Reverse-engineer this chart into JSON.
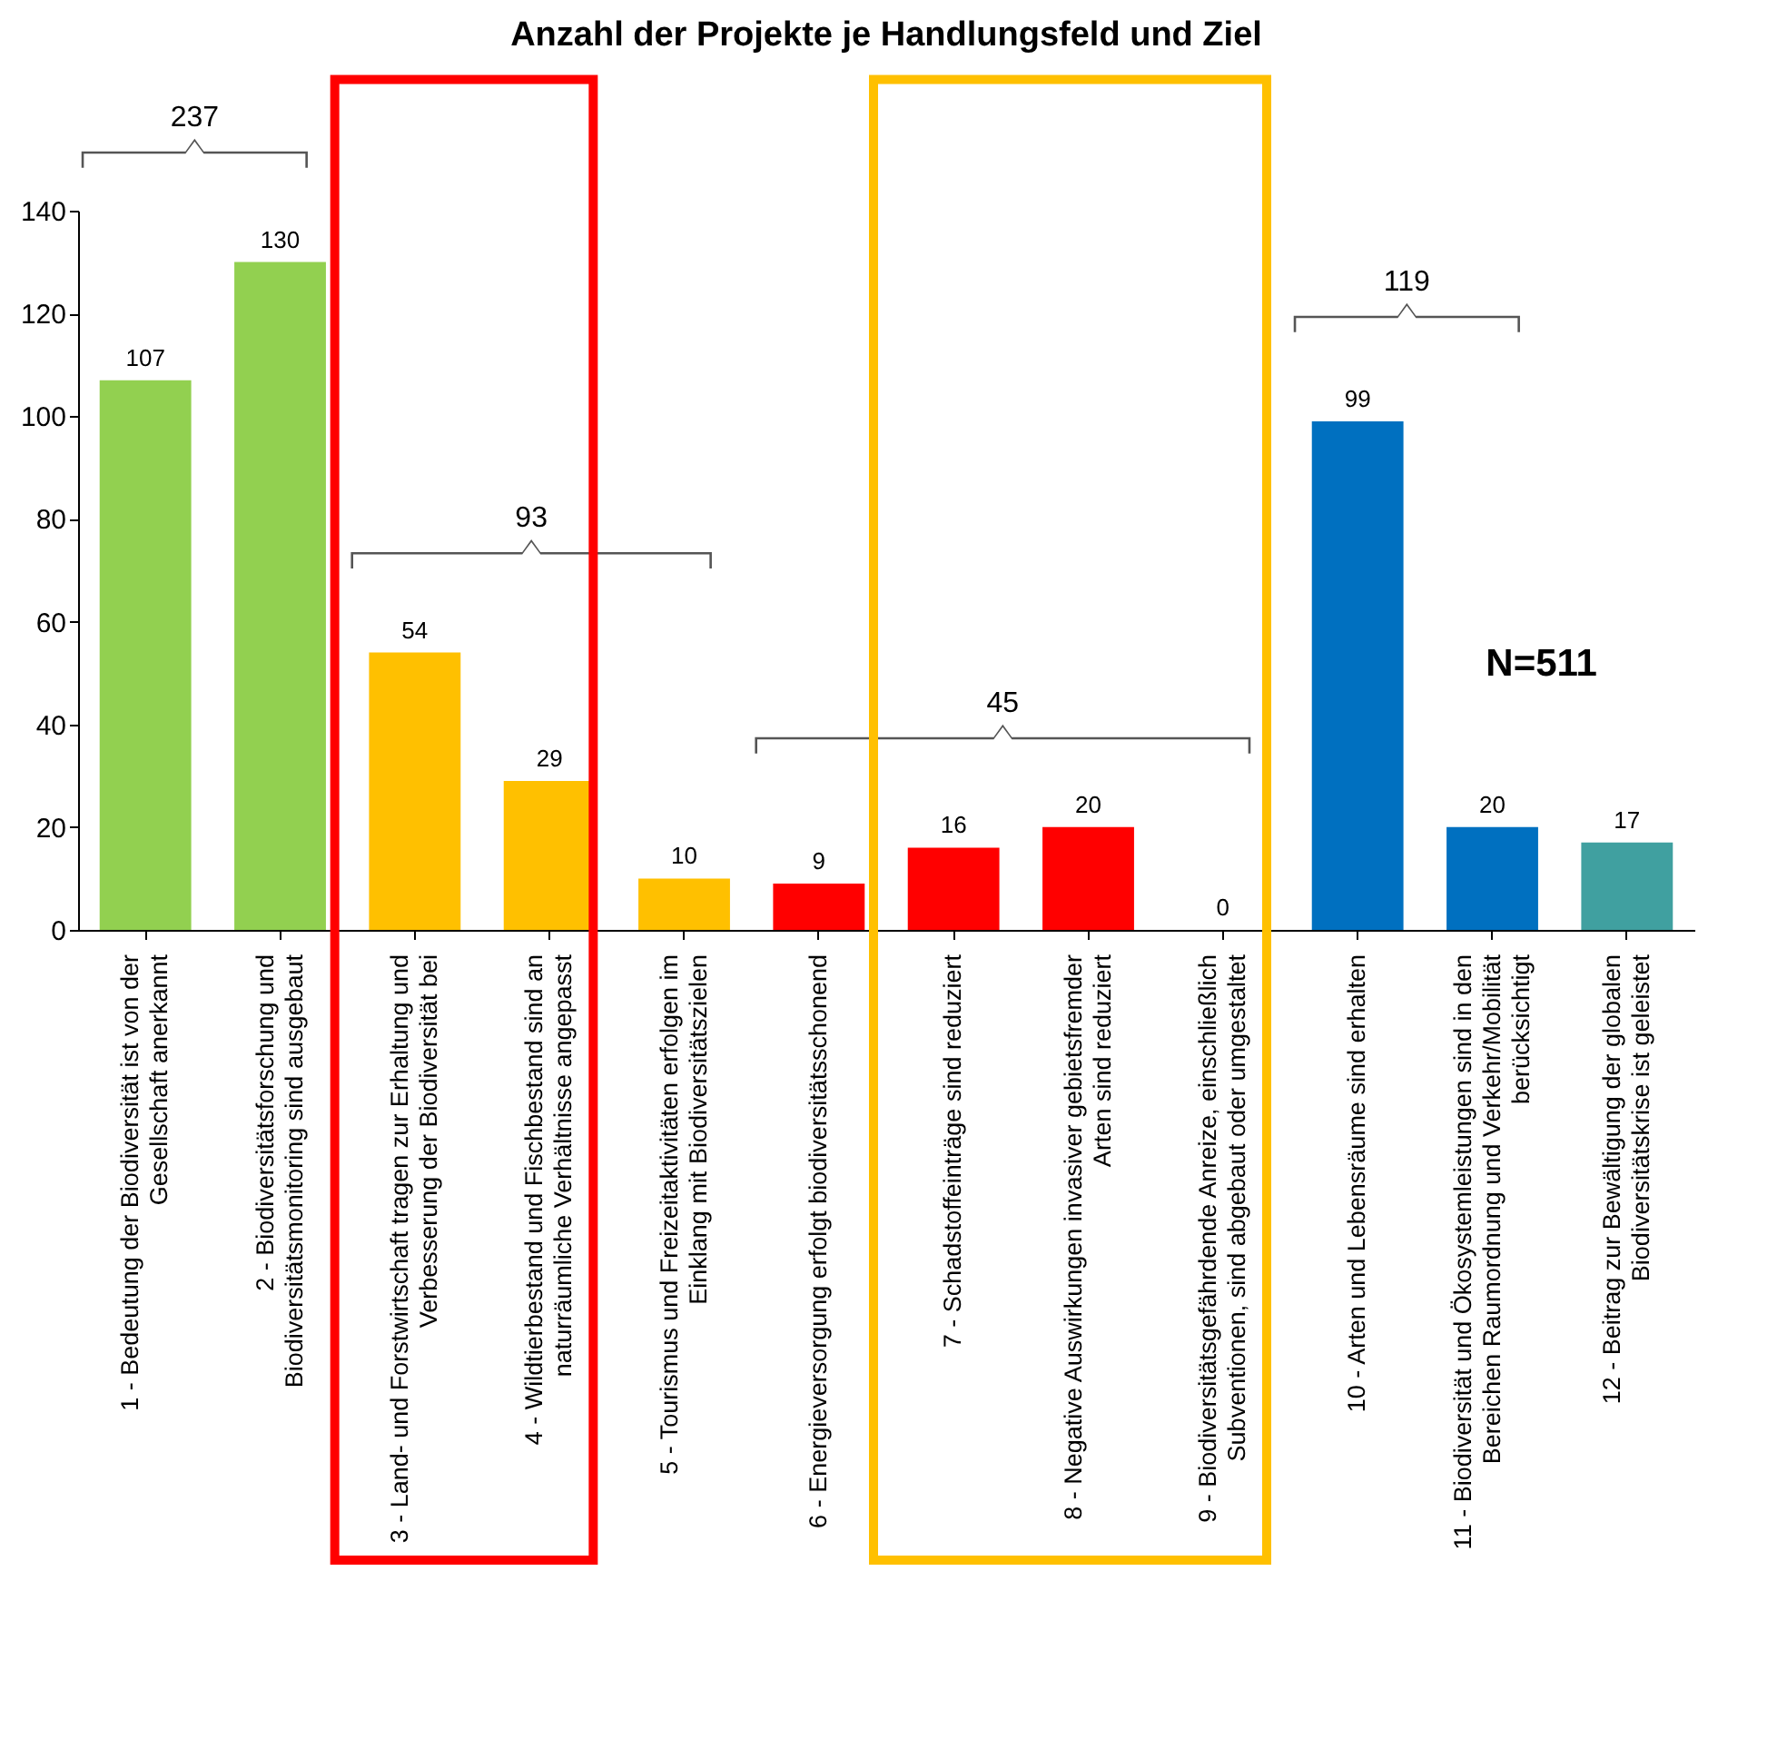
{
  "chart_data": {
    "type": "bar",
    "title": "Anzahl der Projekte je Handlungsfeld und Ziel",
    "categories": [
      "1 - Bedeutung der Biodiversität ist von der Gesellschaft anerkannt",
      "2 - Biodiversitätsforschung und Biodiversitätsmonitoring sind ausgebaut",
      "3 - Land- und Forstwirtschaft tragen zur Erhaltung und Verbesserung der Biodiversität bei",
      "4 - Wildtierbestand und Fischbestand sind an naturräumliche Verhältnisse angepasst",
      "5 - Tourismus und Freizeitaktivitäten erfolgen im Einklang mit Biodiversitätszielen",
      "6 - Energieversorgung erfolgt biodiversitätsschonend",
      "7 - Schadstoffeinträge sind reduziert",
      "8 - Negative Auswirkungen invasiver gebietsfremder Arten sind reduziert",
      "9 - Biodiversitätsgefährdende Anreize, einschließlich Subventionen, sind abgebaut oder umgestaltet",
      "10 - Arten und Lebensräume sind erhalten",
      "11 - Biodiversität und Ökosystemleistungen sind in den Bereichen Raumordnung und Verkehr/Mobilität berücksichtigt",
      "12 - Beitrag zur Bewältigung der globalen Biodiversitätskrise ist geleistet"
    ],
    "values": [
      107,
      130,
      54,
      29,
      10,
      9,
      16,
      20,
      0,
      99,
      20,
      17
    ],
    "colors": [
      "#92d050",
      "#92d050",
      "#ffc000",
      "#ffc000",
      "#ffc000",
      "#ff0000",
      "#ff0000",
      "#ff0000",
      "#ff0000",
      "#0070c0",
      "#0070c0",
      "#40a0a0"
    ],
    "ylim": [
      0,
      140
    ],
    "yticks": [
      0,
      20,
      40,
      60,
      80,
      100,
      120,
      140
    ],
    "grid": false,
    "data_labels": true,
    "annotations": [
      "237",
      "93",
      "45",
      "119",
      "N=511"
    ]
  }
}
